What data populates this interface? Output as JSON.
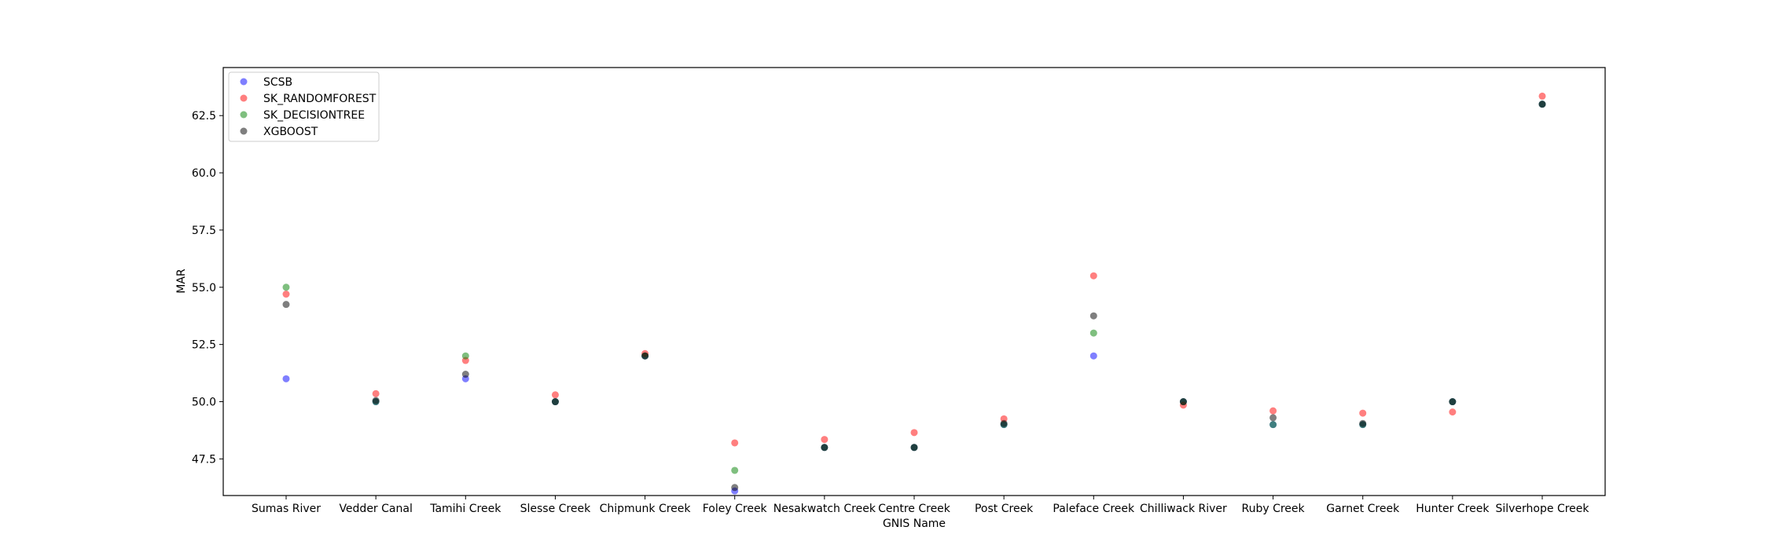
{
  "chart_data": {
    "type": "scatter",
    "xlabel": "GNIS Name",
    "ylabel": "MAR",
    "categories": [
      "Sumas River",
      "Vedder Canal",
      "Tamihi Creek",
      "Slesse Creek",
      "Chipmunk Creek",
      "Foley Creek",
      "Nesakwatch Creek",
      "Centre Creek",
      "Post Creek",
      "Paleface Creek",
      "Chilliwack River",
      "Ruby Creek",
      "Garnet Creek",
      "Hunter Creek",
      "Silverhope Creek"
    ],
    "ylim": [
      45.9,
      64.6
    ],
    "yticks": [
      47.5,
      50.0,
      52.5,
      55.0,
      57.5,
      60.0,
      62.5
    ],
    "ytick_labels": [
      "47.5",
      "50.0",
      "52.5",
      "55.0",
      "57.5",
      "60.0",
      "62.5"
    ],
    "grid": false,
    "legend_position": "top-left",
    "series": [
      {
        "name": "SCSB",
        "color": "#0000ff",
        "values": [
          51.0,
          50.0,
          51.0,
          50.0,
          52.0,
          46.1,
          48.0,
          48.0,
          49.0,
          52.0,
          50.0,
          49.0,
          49.0,
          50.0,
          63.0
        ]
      },
      {
        "name": "SK_RANDOMFOREST",
        "color": "#ff0000",
        "values": [
          54.7,
          50.35,
          51.8,
          50.3,
          52.1,
          48.2,
          48.35,
          48.65,
          49.25,
          55.5,
          49.85,
          49.6,
          49.5,
          49.55,
          63.35
        ]
      },
      {
        "name": "SK_DECISIONTREE",
        "color": "#008000",
        "values": [
          55.0,
          50.0,
          52.0,
          50.0,
          52.0,
          47.0,
          48.0,
          48.0,
          49.0,
          53.0,
          50.0,
          49.0,
          49.0,
          50.0,
          63.0
        ]
      },
      {
        "name": "XGBOOST",
        "color": "#000000",
        "values": [
          54.25,
          50.05,
          51.2,
          50.0,
          52.0,
          46.25,
          48.0,
          48.0,
          49.05,
          53.75,
          50.0,
          49.3,
          49.05,
          50.0,
          63.0
        ]
      }
    ]
  }
}
